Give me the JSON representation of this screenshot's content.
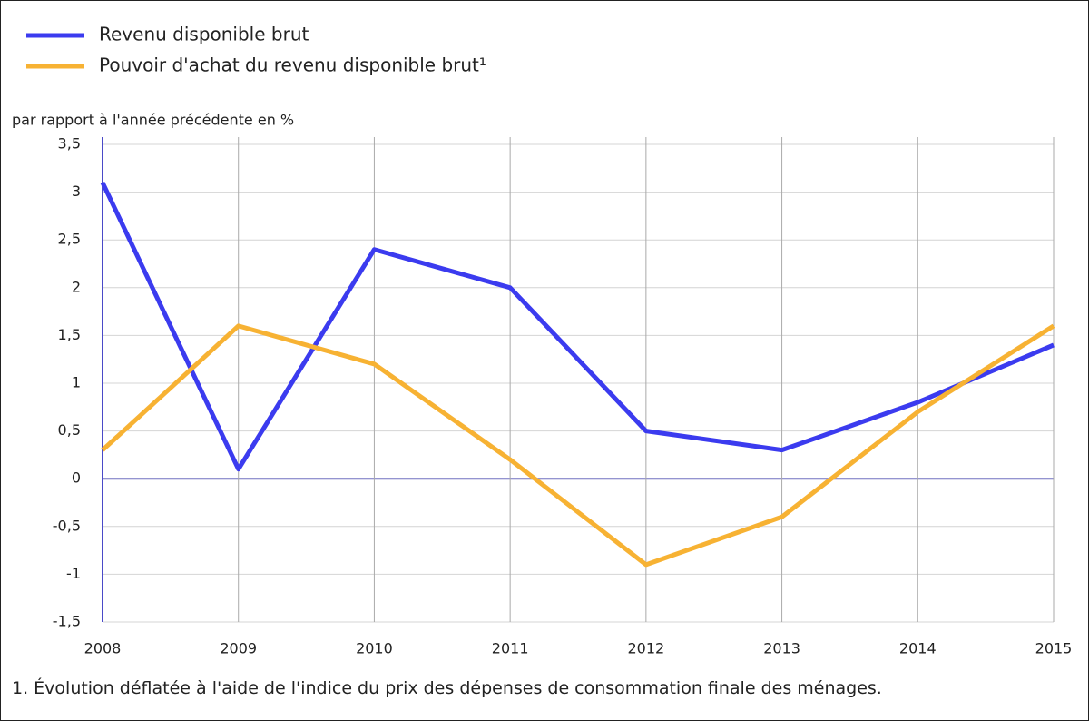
{
  "chart_data": {
    "type": "line",
    "y_label": "par rapport à l'année précédente en %",
    "footnote": "1. Évolution déflatée à l'aide de l'indice du prix des dépenses de consommation finale des ménages.",
    "categories": [
      "2008",
      "2009",
      "2010",
      "2011",
      "2012",
      "2013",
      "2014",
      "2015"
    ],
    "series": [
      {
        "name": "Revenu disponible brut",
        "color": "#3b3bef",
        "values": [
          3.1,
          0.1,
          2.4,
          2.0,
          0.5,
          0.3,
          0.8,
          1.4
        ]
      },
      {
        "name": "Pouvoir d'achat du revenu disponible brut¹",
        "color": "#f7b233",
        "values": [
          0.3,
          1.6,
          1.2,
          0.2,
          -0.9,
          -0.4,
          0.7,
          1.6
        ]
      }
    ],
    "ylim": [
      -1.5,
      3.5
    ],
    "yticks": [
      {
        "value": 3.5,
        "label": "3,5"
      },
      3,
      {
        "value": 2.5,
        "label": "2,5"
      },
      2,
      {
        "value": 1.5,
        "label": "1,5"
      },
      1,
      {
        "value": 0.5,
        "label": "0,5"
      },
      0,
      {
        "value": -0.5,
        "label": "-0,5"
      },
      -1,
      {
        "value": -1.5,
        "label": "-1,5"
      }
    ],
    "grid": true
  }
}
